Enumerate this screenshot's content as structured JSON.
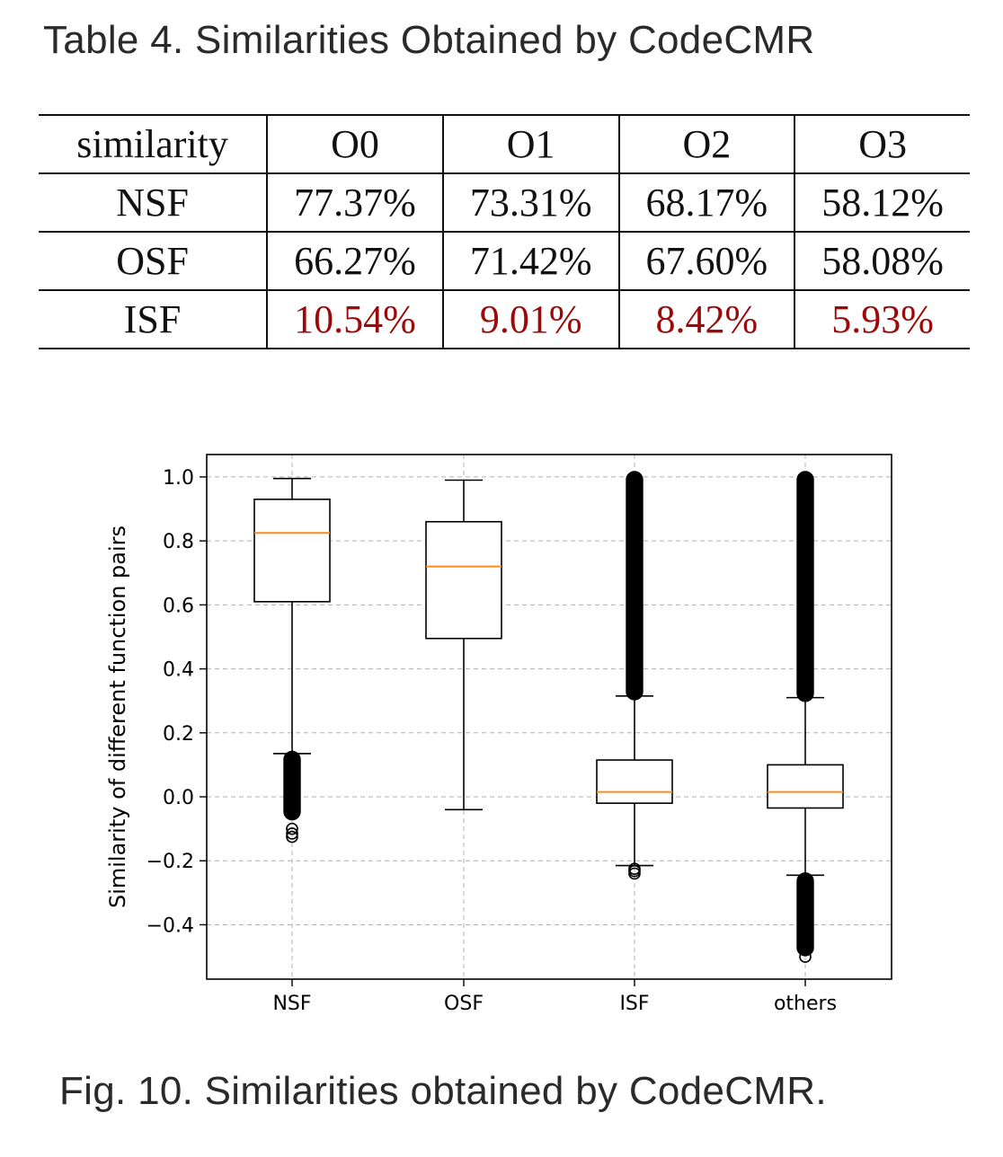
{
  "table": {
    "title": "Table 4.  Similarities Obtained by CodeCMR",
    "header": [
      "similarity",
      "O0",
      "O1",
      "O2",
      "O3"
    ],
    "rows": [
      {
        "label": "NSF",
        "values": [
          "77.37%",
          "73.31%",
          "68.17%",
          "58.12%"
        ]
      },
      {
        "label": "OSF",
        "values": [
          "66.27%",
          "71.42%",
          "67.60%",
          "58.08%"
        ]
      },
      {
        "label": "ISF",
        "values": [
          "10.54%",
          "9.01%",
          "8.42%",
          "5.93%"
        ]
      }
    ],
    "highlight_color": "#9b0a0a"
  },
  "figure": {
    "caption": "Fig. 10.  Similarities obtained by CodeCMR."
  },
  "chart_data": {
    "type": "box",
    "ylabel": "Similarity of different function pairs",
    "xlabel": "",
    "ylim": [
      -0.57,
      1.07
    ],
    "yticks": [
      -0.4,
      -0.2,
      0.0,
      0.2,
      0.4,
      0.6,
      0.8,
      1.0
    ],
    "ytick_labels": [
      "−0.4",
      "−0.2",
      "0.0",
      "0.2",
      "0.4",
      "0.6",
      "0.8",
      "1.0"
    ],
    "grid": true,
    "categories": [
      "NSF",
      "OSF",
      "ISF",
      "others"
    ],
    "box_color": "#000000",
    "median_color": "#ff8c1a",
    "boxes": [
      {
        "whisker_low": 0.135,
        "q1": 0.61,
        "median": 0.825,
        "q3": 0.93,
        "whisker_high": 0.995,
        "outlier_bands": [
          [
            -0.055,
            0.125
          ]
        ],
        "outliers": [
          -0.1,
          -0.115,
          -0.125
        ]
      },
      {
        "whisker_low": -0.04,
        "q1": 0.495,
        "median": 0.72,
        "q3": 0.86,
        "whisker_high": 0.99,
        "outlier_bands": [],
        "outliers": []
      },
      {
        "whisker_low": -0.215,
        "q1": -0.02,
        "median": 0.015,
        "q3": 0.115,
        "whisker_high": 0.315,
        "outlier_bands": [
          [
            0.32,
            1.0
          ]
        ],
        "outliers": [
          -0.225,
          -0.232,
          -0.24
        ]
      },
      {
        "whisker_low": -0.245,
        "q1": -0.035,
        "median": 0.015,
        "q3": 0.1,
        "whisker_high": 0.31,
        "outlier_bands": [
          [
            0.315,
            1.0
          ],
          [
            -0.48,
            -0.255
          ]
        ],
        "outliers": [
          -0.5
        ]
      }
    ]
  }
}
